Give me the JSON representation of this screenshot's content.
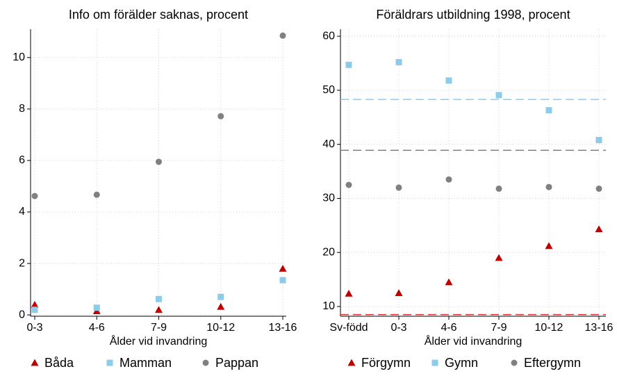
{
  "chart_data": [
    {
      "type": "scatter",
      "title": "Info om förälder saknas, procent",
      "xlabel": "Ålder vid invandring",
      "categories": [
        "0-3",
        "4-6",
        "7-9",
        "10-12",
        "13-16"
      ],
      "ylim": [
        -0.05,
        11.1
      ],
      "yticks": [
        0,
        2,
        4,
        6,
        8,
        10
      ],
      "grid": true,
      "series": [
        {
          "name": "Båda",
          "color": "#c00000",
          "marker": "triangle",
          "values": [
            0.4,
            0.15,
            0.2,
            0.32,
            1.8
          ]
        },
        {
          "name": "Mamman",
          "color": "#8ccbea",
          "marker": "square",
          "values": [
            0.2,
            0.28,
            0.62,
            0.7,
            1.35
          ]
        },
        {
          "name": "Pappan",
          "color": "#808080",
          "marker": "circle",
          "values": [
            4.62,
            4.67,
            5.95,
            7.72,
            10.85
          ]
        }
      ]
    },
    {
      "type": "scatter",
      "title": "Föräldrars utbildning 1998, procent",
      "xlabel": "Ålder vid invandring",
      "categories": [
        "Sv-född",
        "0-3",
        "4-6",
        "7-9",
        "10-12",
        "13-16"
      ],
      "ylim": [
        8.2,
        61.3
      ],
      "yticks": [
        10,
        20,
        30,
        40,
        50,
        60
      ],
      "grid": true,
      "series": [
        {
          "name": "Förgymn",
          "color": "#c00000",
          "marker": "triangle",
          "values": [
            12.4,
            12.5,
            14.5,
            19,
            21.2,
            24.3
          ]
        },
        {
          "name": "Gymn",
          "color": "#8ccbea",
          "marker": "square",
          "values": [
            54.7,
            55.2,
            51.8,
            49.1,
            46.3,
            40.8
          ]
        },
        {
          "name": "Eftergymn",
          "color": "#808080",
          "marker": "circle",
          "values": [
            32.5,
            32,
            33.5,
            31.8,
            32.1,
            31.8
          ]
        }
      ],
      "reference_lines": [
        {
          "value": 48.3,
          "color": "#8ccbea"
        },
        {
          "value": 38.9,
          "color": "#808080"
        },
        {
          "value": 8.5,
          "color": "#e03030"
        }
      ]
    }
  ]
}
